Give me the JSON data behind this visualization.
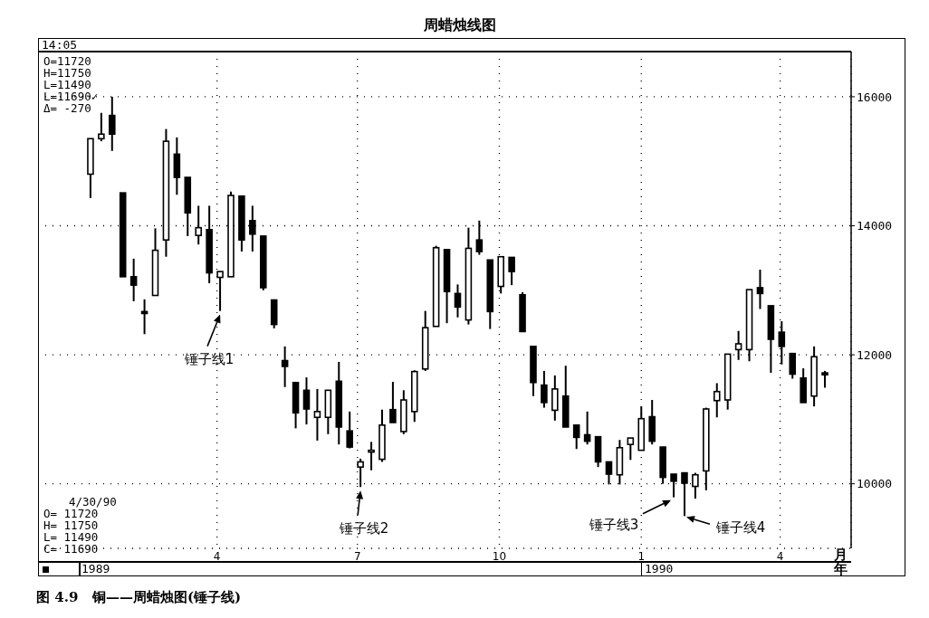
{
  "chart_data": {
    "type": "candlestick",
    "title": "周蜡烛线图",
    "xlabel": "月",
    "x": [
      "1989-01-09",
      "1989-01-16",
      "1989-01-23",
      "1989-01-30",
      "1989-02-06",
      "1989-02-13",
      "1989-02-20",
      "1989-02-27",
      "1989-03-06",
      "1989-03-13",
      "1989-03-20",
      "1989-03-27",
      "1989-04-03",
      "1989-04-10",
      "1989-04-17",
      "1989-04-24",
      "1989-05-01",
      "1989-05-08",
      "1989-05-15",
      "1989-05-22",
      "1989-05-29",
      "1989-06-05",
      "1989-06-12",
      "1989-06-19",
      "1989-06-26",
      "1989-07-03",
      "1989-07-10",
      "1989-07-17",
      "1989-07-24",
      "1989-07-31",
      "1989-08-07",
      "1989-08-14",
      "1989-08-21",
      "1989-08-28",
      "1989-09-04",
      "1989-09-11",
      "1989-09-18",
      "1989-09-25",
      "1989-10-02",
      "1989-10-09",
      "1989-10-16",
      "1989-10-23",
      "1989-10-30",
      "1989-11-06",
      "1989-11-13",
      "1989-11-20",
      "1989-11-27",
      "1989-12-04",
      "1989-12-11",
      "1989-12-18",
      "1989-12-25",
      "1990-01-01",
      "1990-01-08",
      "1990-01-15",
      "1990-01-22",
      "1990-01-29",
      "1990-02-05",
      "1990-02-12",
      "1990-02-19",
      "1990-02-26",
      "1990-03-05",
      "1990-03-12",
      "1990-03-19",
      "1990-03-26",
      "1990-04-02",
      "1990-04-09",
      "1990-04-16",
      "1990-04-23",
      "1990-04-30"
    ],
    "ohlc": [
      [
        14800,
        15350,
        14430,
        15350
      ],
      [
        15350,
        15750,
        15310,
        15420
      ],
      [
        15710,
        16000,
        15160,
        15420
      ],
      [
        14510,
        14510,
        13210,
        13210
      ],
      [
        13210,
        13490,
        12830,
        13080
      ],
      [
        12670,
        12860,
        12320,
        12640
      ],
      [
        12920,
        13960,
        12920,
        13620
      ],
      [
        13780,
        15500,
        13520,
        15310
      ],
      [
        15110,
        15370,
        14480,
        14750
      ],
      [
        14750,
        14750,
        13840,
        14200
      ],
      [
        13850,
        14310,
        13710,
        13970
      ],
      [
        13940,
        14310,
        13110,
        13270
      ],
      [
        13200,
        13290,
        12680,
        13290
      ],
      [
        13210,
        14530,
        13210,
        14470
      ],
      [
        14460,
        14460,
        13600,
        13780
      ],
      [
        14080,
        14310,
        13600,
        13870
      ],
      [
        13840,
        13840,
        13000,
        13040
      ],
      [
        12850,
        12850,
        12410,
        12470
      ],
      [
        11910,
        12130,
        11500,
        11820
      ],
      [
        11570,
        11570,
        10860,
        11100
      ],
      [
        11450,
        11650,
        10920,
        11160
      ],
      [
        11030,
        11470,
        10670,
        11120
      ],
      [
        11030,
        11450,
        10770,
        11450
      ],
      [
        11590,
        11890,
        10610,
        10880
      ],
      [
        10820,
        11120,
        10550,
        10570
      ],
      [
        10260,
        10390,
        9950,
        10340
      ],
      [
        10500,
        10650,
        10210,
        10520
      ],
      [
        10380,
        11150,
        10340,
        10910
      ],
      [
        11150,
        11580,
        10950,
        10950
      ],
      [
        10810,
        11450,
        10770,
        11300
      ],
      [
        11120,
        11760,
        10960,
        11740
      ],
      [
        11780,
        12680,
        11750,
        12420
      ],
      [
        12440,
        13690,
        12440,
        13660
      ],
      [
        13630,
        13630,
        12490,
        12980
      ],
      [
        12950,
        13090,
        12580,
        12740
      ],
      [
        12540,
        13970,
        12470,
        13650
      ],
      [
        13780,
        14080,
        13550,
        13600
      ],
      [
        13470,
        13470,
        12400,
        12670
      ],
      [
        13060,
        13520,
        12950,
        13520
      ],
      [
        13510,
        13510,
        13080,
        13290
      ],
      [
        12930,
        12970,
        12360,
        12360
      ],
      [
        12130,
        12130,
        11360,
        11570
      ],
      [
        11530,
        11750,
        11180,
        11260
      ],
      [
        11140,
        11680,
        10980,
        11470
      ],
      [
        11360,
        11830,
        10880,
        10880
      ],
      [
        10910,
        10910,
        10540,
        10720
      ],
      [
        10760,
        11120,
        10610,
        10660
      ],
      [
        10730,
        10730,
        10260,
        10340
      ],
      [
        10340,
        10340,
        9990,
        10150
      ],
      [
        10140,
        10680,
        9990,
        10560
      ],
      [
        10610,
        10710,
        10370,
        10710
      ],
      [
        10520,
        11200,
        10520,
        11010
      ],
      [
        11040,
        11300,
        10610,
        10660
      ],
      [
        10570,
        10570,
        10000,
        10100
      ],
      [
        10150,
        10150,
        9790,
        10040
      ],
      [
        10170,
        10170,
        9500,
        10010
      ],
      [
        9960,
        10170,
        9770,
        10140
      ],
      [
        10200,
        11180,
        9900,
        11160
      ],
      [
        11290,
        11560,
        11030,
        11430
      ],
      [
        11300,
        12010,
        11150,
        12010
      ],
      [
        12080,
        12370,
        11920,
        12170
      ],
      [
        12080,
        13010,
        11900,
        13010
      ],
      [
        13040,
        13320,
        12710,
        12950
      ],
      [
        12760,
        12760,
        11720,
        12240
      ],
      [
        12350,
        12520,
        11850,
        12130
      ],
      [
        12020,
        12020,
        11630,
        11700
      ],
      [
        11640,
        11790,
        11260,
        11260
      ],
      [
        11360,
        12130,
        11200,
        11970
      ],
      [
        11720,
        11750,
        11490,
        11690
      ]
    ],
    "color": "#000000",
    "xlim": [
      "1988-12-06",
      "1990-05-17"
    ],
    "xticks": [
      {
        "value": "1989-04-01",
        "label": "4"
      },
      {
        "value": "1989-07-01",
        "label": "7"
      },
      {
        "value": "1989-10-01",
        "label": "10"
      },
      {
        "value": "1990-01-01",
        "label": "1"
      },
      {
        "value": "1990-04-01",
        "label": "4"
      }
    ],
    "ylim": [
      9000,
      16700
    ],
    "yticks": [
      10000,
      12000,
      14000,
      16000
    ],
    "grid": true,
    "annotations": [
      "14:05",
      "O=11720",
      "H=11750",
      "L=11490",
      "L=11690✓",
      "Δ= -270",
      "4/30/90",
      "O= 11720",
      "H= 11750",
      "L= 11490",
      "C= 11690",
      "1989",
      "1990",
      "年",
      "图 4.9   铜——周蜡烛图(锤子线)",
      {
        "text": "锤子线1",
        "x": "1989-04-03",
        "y": 12680
      },
      {
        "text": "锤子线2",
        "x": "1989-07-03",
        "y": 9950
      },
      {
        "text": "锤子线3",
        "x": "1990-01-22",
        "y": 9790
      },
      {
        "text": "锤子线4",
        "x": "1990-01-29",
        "y": 9500
      }
    ]
  }
}
